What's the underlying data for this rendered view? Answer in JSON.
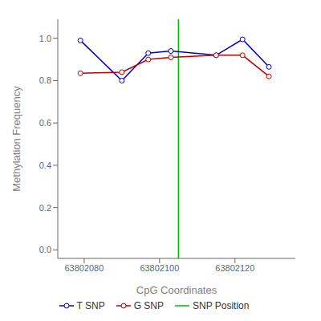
{
  "chart_data": {
    "type": "line",
    "xlabel": "CpG Coordinates",
    "ylabel": "Methylation Frequency",
    "x": [
      63802079,
      63802090,
      63802097,
      63802103,
      63802115,
      63802122,
      63802129
    ],
    "series": [
      {
        "name": "T SNP",
        "color": "#0000BB",
        "marker": "circle",
        "values": [
          0.99,
          0.8,
          0.93,
          0.94,
          0.92,
          0.995,
          0.865
        ]
      },
      {
        "name": "G SNP",
        "color": "#BB0000",
        "marker": "circle",
        "values": [
          0.835,
          0.84,
          0.9,
          0.91,
          0.92,
          0.92,
          0.82
        ]
      }
    ],
    "vlines": [
      {
        "name": "SNP Position",
        "value": 63802105,
        "color": "#00BB00"
      }
    ],
    "xlim": [
      63802073,
      63802136
    ],
    "xticks": [
      63802080,
      63802100,
      63802120
    ],
    "ylim": [
      -0.04,
      1.09
    ],
    "yticks": [
      {
        "value": 0,
        "label": "0.0"
      },
      0.2,
      0.4,
      0.6,
      0.8,
      {
        "value": 1,
        "label": "1.0"
      }
    ],
    "grid": false,
    "legend": "bottom"
  }
}
